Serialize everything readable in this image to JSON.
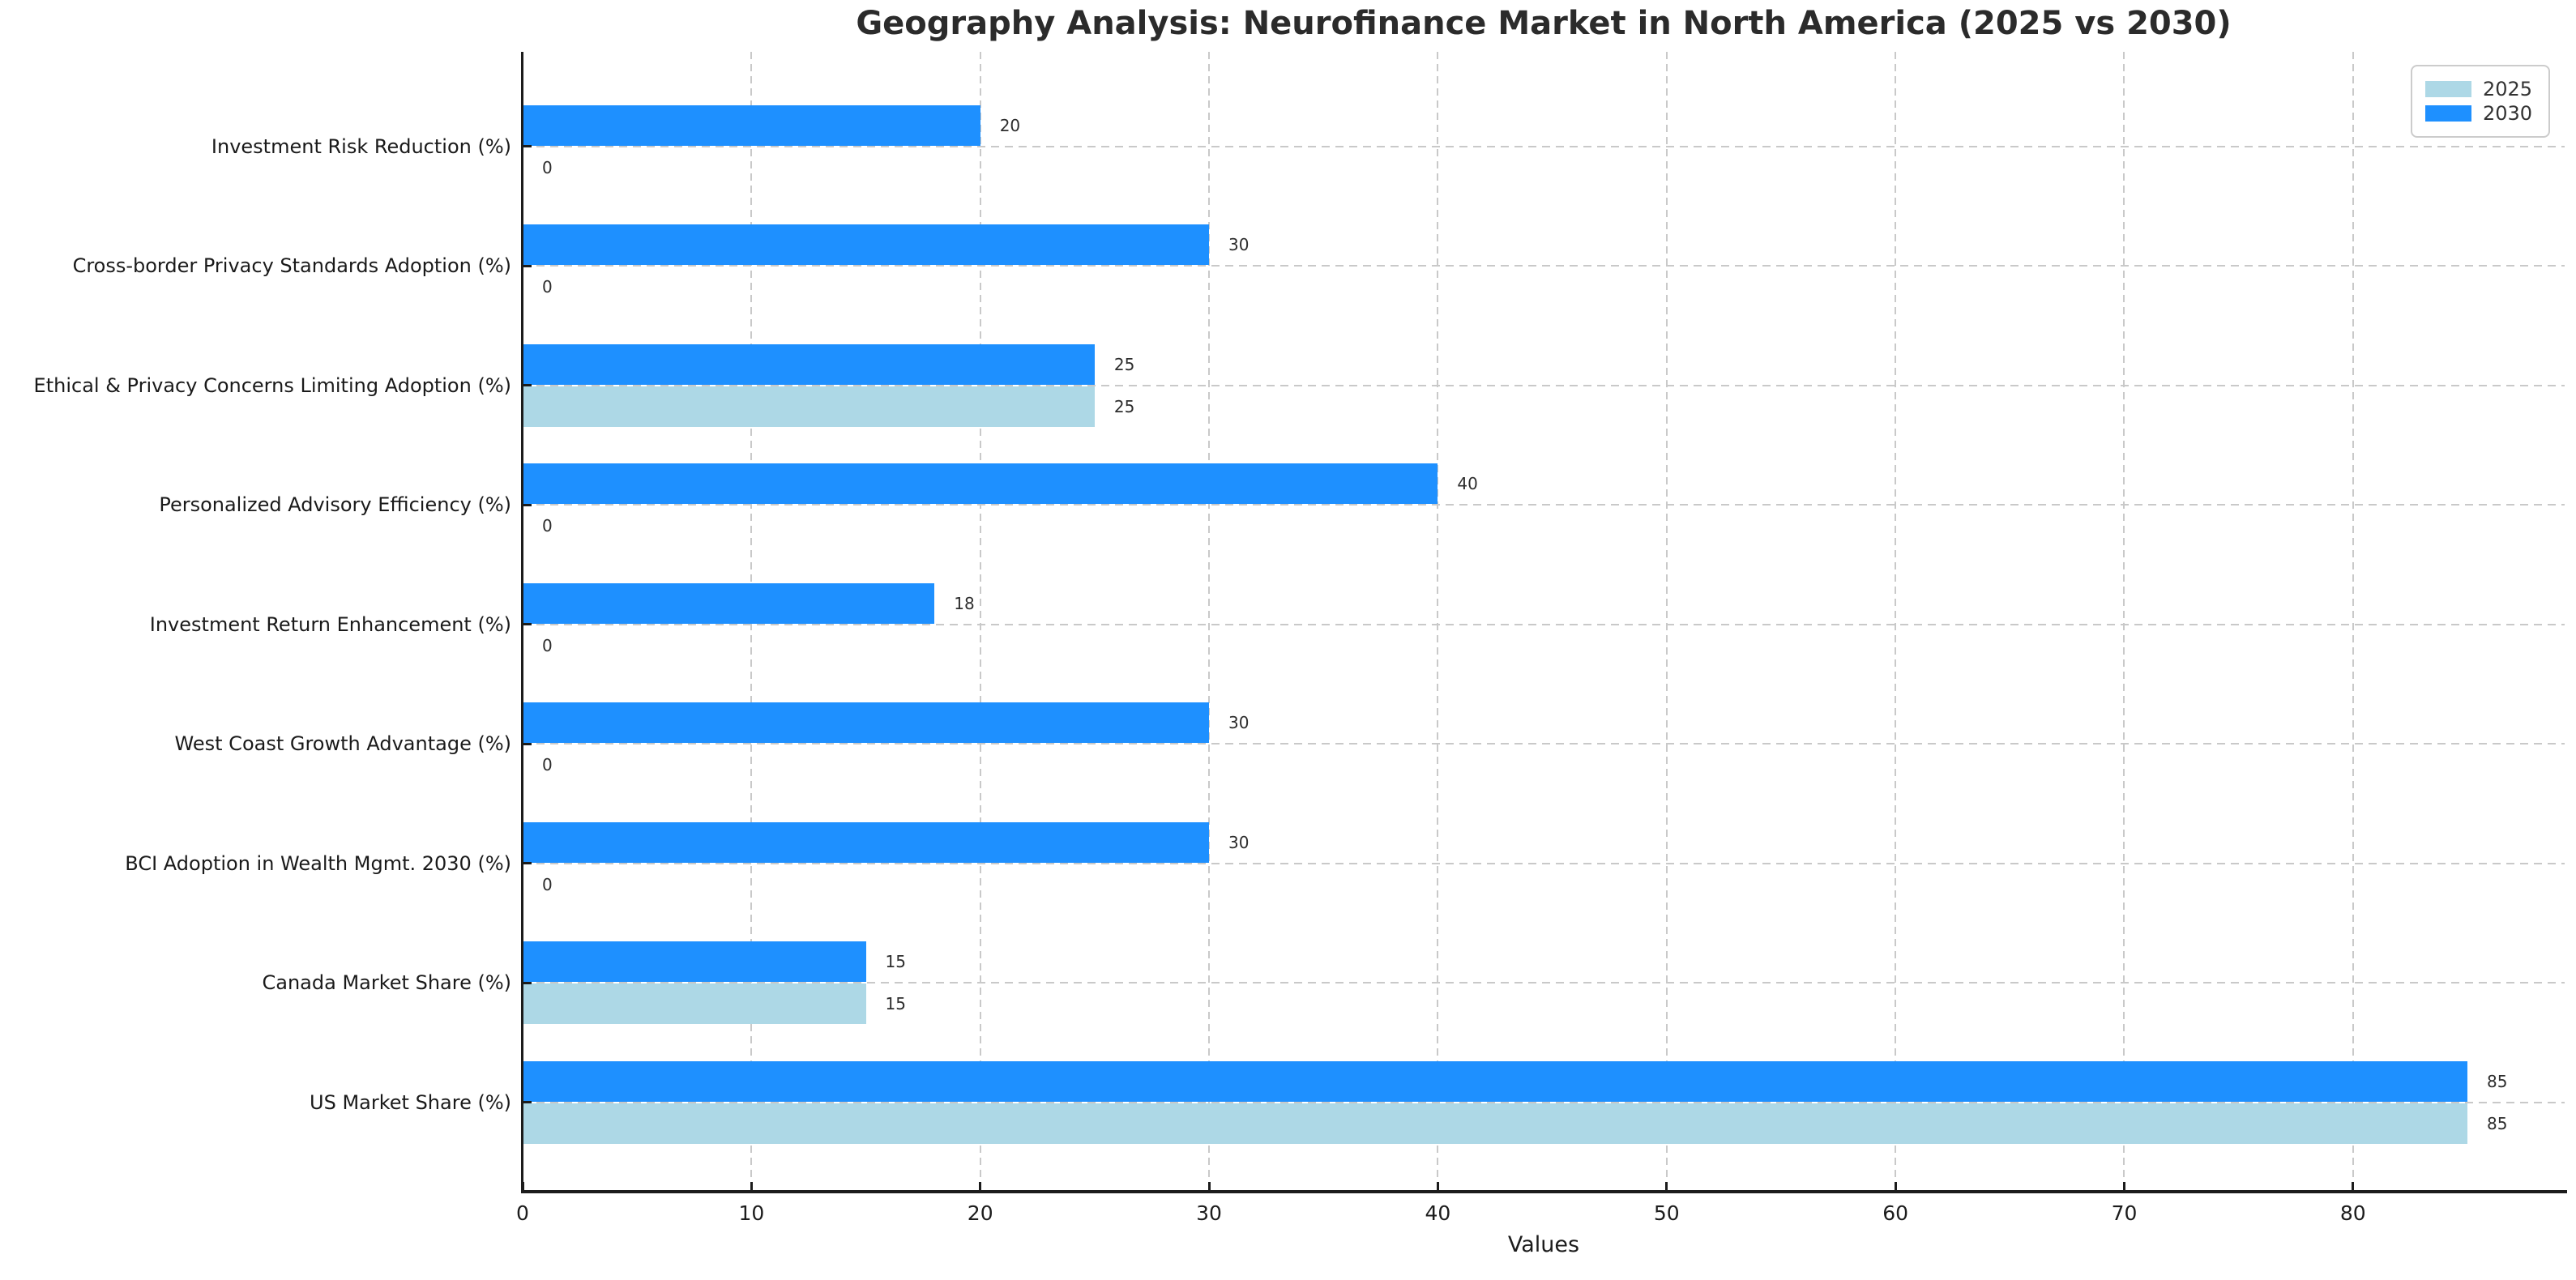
{
  "title": "Geography Analysis: Neurofinance Market in North America (2025 vs 2030)",
  "chart_data": {
    "type": "bar",
    "orientation": "horizontal",
    "categories_order": "top_to_bottom",
    "categories": [
      "Investment Risk Reduction (%)",
      "Cross-border Privacy Standards Adoption (%)",
      "Ethical & Privacy Concerns Limiting Adoption (%)",
      "Personalized Advisory Efficiency (%)",
      "Investment Return Enhancement (%)",
      "West Coast Growth Advantage (%)",
      "BCI Adoption in Wealth Mgmt. 2030 (%)",
      "Canada Market Share (%)",
      "US Market Share (%)"
    ],
    "series": [
      {
        "name": "2025",
        "color": "#ADD8E6",
        "values": [
          0,
          0,
          25,
          0,
          0,
          0,
          0,
          15,
          85
        ]
      },
      {
        "name": "2030",
        "color": "#1E90FF",
        "values": [
          20,
          30,
          25,
          40,
          18,
          30,
          30,
          15,
          85
        ]
      }
    ],
    "bar_value_labels": true,
    "xlabel": "Values",
    "xlim": [
      0,
      89.25
    ],
    "xticks": [
      0,
      10,
      20,
      30,
      40,
      50,
      60,
      70,
      80
    ],
    "grid": "dashed both axes",
    "legend_position": "upper right",
    "legend_entries": [
      "2025",
      "2030"
    ]
  },
  "colors": {
    "series_2025": "#ADD8E6",
    "series_2030": "#1E90FF",
    "grid": "#c9c9c9",
    "spine": "#1c1c1c",
    "title_text": "#2b2b2b",
    "tick_text": "#1c1c1c",
    "value_label_text": "#2d2d2d",
    "background": "#ffffff",
    "legend_border": "#cccccc"
  }
}
